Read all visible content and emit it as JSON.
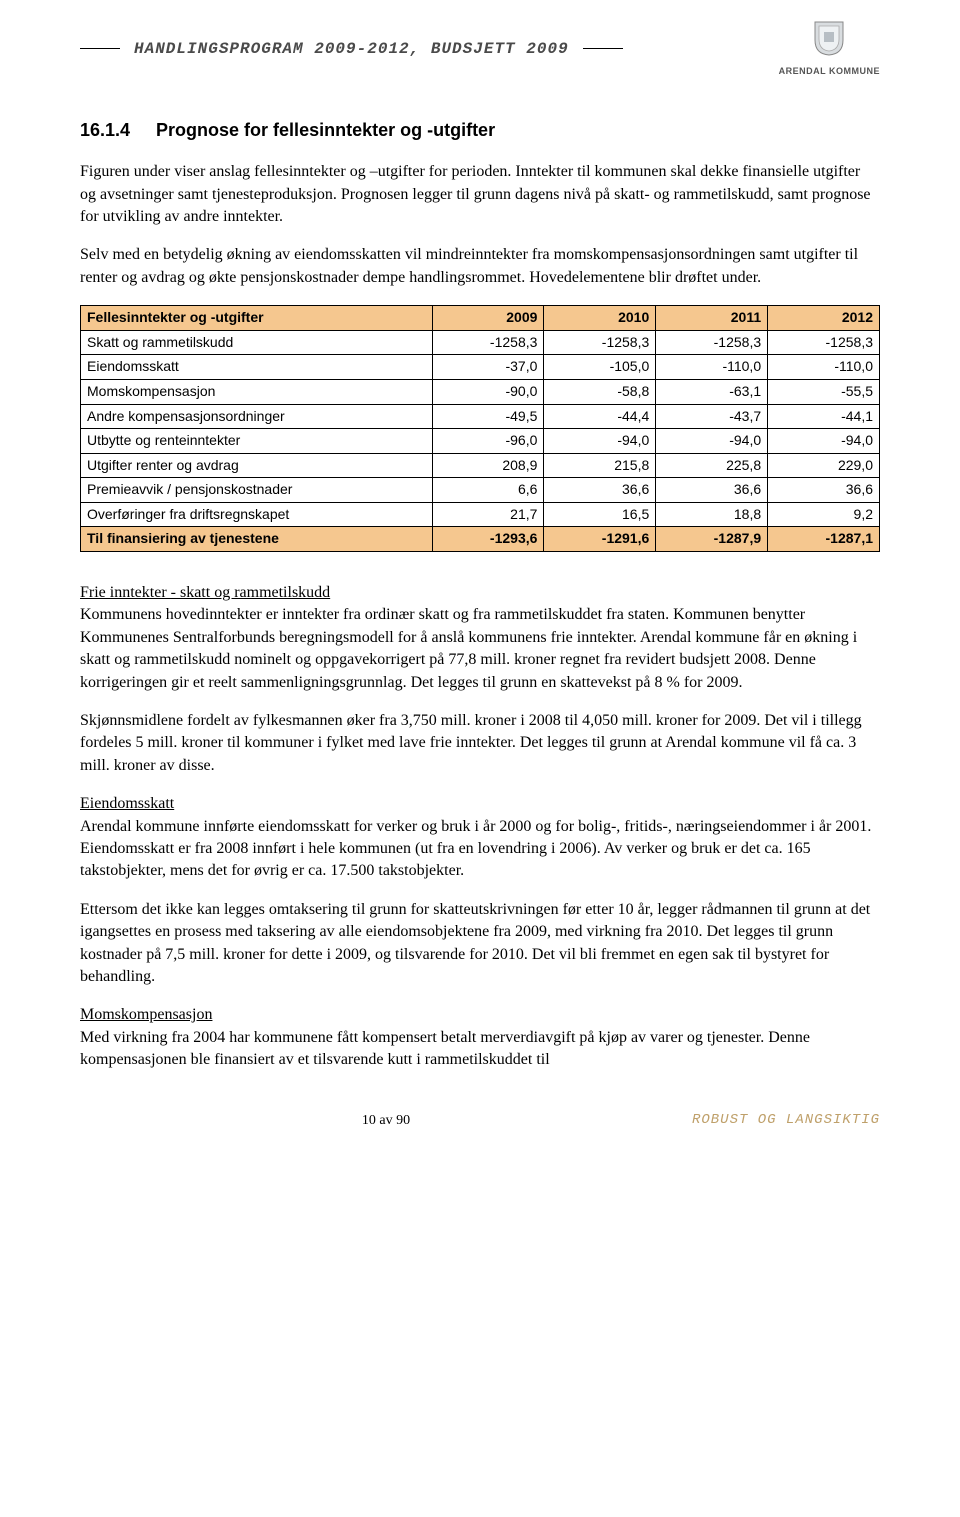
{
  "header": {
    "title": "HANDLINGSPROGRAM 2009-2012, BUDSJETT 2009",
    "org": "ARENDAL KOMMUNE"
  },
  "section": {
    "number": "16.1.4",
    "heading": "Prognose for fellesinntekter og -utgifter"
  },
  "paragraphs": {
    "intro": "Figuren under viser anslag fellesinntekter og –utgifter for perioden. Inntekter til kommunen skal dekke finansielle utgifter og avsetninger samt tjenesteproduksjon. Prognosen legger til grunn dagens nivå på  skatt- og rammetilskudd, samt prognose for utvikling av andre inntekter.",
    "intro2": "Selv med en betydelig økning av eiendomsskatten vil mindreinntekter fra momskompensasjonsordningen samt utgifter til renter og avdrag og økte pensjonskostnader dempe handlingsrommet. Hovedelementene blir drøftet under.",
    "frie_head": "Frie inntekter - skatt og rammetilskudd",
    "frie_body": "Kommunens hovedinntekter er inntekter fra ordinær skatt og fra rammetilskuddet fra staten. Kommunen benytter Kommunenes Sentralforbunds beregningsmodell for å anslå kommunens frie inntekter.  Arendal kommune får en økning i skatt og rammetilskudd nominelt og oppgavekorrigert  på 77,8 mill. kroner regnet fra revidert budsjett 2008. Denne korrigeringen gir et reelt sammenligningsgrunnlag. Det legges til grunn en skattevekst på 8 % for 2009.",
    "skjonn": "Skjønnsmidlene fordelt av fylkesmannen øker fra 3,750 mill. kroner i 2008 til 4,050 mill. kroner for 2009. Det vil i tillegg fordeles 5 mill. kroner til kommuner i fylket med lave frie inntekter. Det legges til grunn at Arendal kommune vil få ca. 3 mill. kroner av disse.",
    "eiendom_head": "Eiendomsskatt",
    "eiendom_body": "Arendal kommune innførte eiendomsskatt for verker og bruk i år 2000 og for bolig-, fritids-, næringseiendommer i år 2001. Eiendomsskatt er fra 2008 innført i hele kommunen (ut fra en lovendring i 2006). Av verker og bruk er det ca. 165 takstobjekter, mens det for øvrig er ca. 17.500 takstobjekter.",
    "ettersom": "Ettersom det ikke kan legges omtaksering til grunn for skatteutskrivningen før etter 10 år, legger rådmannen til grunn at det igangsettes en prosess med taksering av alle eiendomsobjektene fra 2009, med virkning fra 2010. Det legges til grunn kostnader på 7,5 mill. kroner for dette i 2009, og tilsvarende for 2010. Det vil bli fremmet en egen sak til bystyret for behandling.",
    "moms_head": "Momskompensasjon",
    "moms_body": "Med virkning fra 2004 har kommunene fått kompensert betalt merverdiavgift på kjøp av varer og tjenester. Denne kompensasjonen ble finansiert av et tilsvarende kutt i rammetilskuddet til"
  },
  "table": {
    "header_fill": "#f5c78f",
    "row_fill": "#ffffff",
    "border_color": "#000000",
    "font_size": 14,
    "columns": [
      "Fellesinntekter og -utgifter",
      "2009",
      "2010",
      "2011",
      "2012"
    ],
    "rows": [
      {
        "label": "Skatt og rammetilskudd",
        "vals": [
          "-1258,3",
          "-1258,3",
          "-1258,3",
          "-1258,3"
        ],
        "fill": "#ffffff",
        "bold": false
      },
      {
        "label": "Eiendomsskatt",
        "vals": [
          "-37,0",
          "-105,0",
          "-110,0",
          "-110,0"
        ],
        "fill": "#ffffff",
        "bold": false
      },
      {
        "label": "Momskompensasjon",
        "vals": [
          "-90,0",
          "-58,8",
          "-63,1",
          "-55,5"
        ],
        "fill": "#ffffff",
        "bold": false
      },
      {
        "label": "Andre kompensasjonsordninger",
        "vals": [
          "-49,5",
          "-44,4",
          "-43,7",
          "-44,1"
        ],
        "fill": "#ffffff",
        "bold": false
      },
      {
        "label": "Utbytte og renteinntekter",
        "vals": [
          "-96,0",
          "-94,0",
          "-94,0",
          "-94,0"
        ],
        "fill": "#ffffff",
        "bold": false
      },
      {
        "label": "Utgifter renter og avdrag",
        "vals": [
          "208,9",
          "215,8",
          "225,8",
          "229,0"
        ],
        "fill": "#ffffff",
        "bold": false
      },
      {
        "label": "Premieavvik / pensjonskostnader",
        "vals": [
          "6,6",
          "36,6",
          "36,6",
          "36,6"
        ],
        "fill": "#ffffff",
        "bold": false
      },
      {
        "label": "Overføringer fra driftsregnskapet",
        "vals": [
          "21,7",
          "16,5",
          "18,8",
          "9,2"
        ],
        "fill": "#ffffff",
        "bold": false
      },
      {
        "label": "Til finansiering av tjenestene",
        "vals": [
          "-1293,6",
          "-1291,6",
          "-1287,9",
          "-1287,1"
        ],
        "fill": "#f5c78f",
        "bold": true
      }
    ]
  },
  "footer": {
    "page": "10 av 90",
    "right": "ROBUST OG LANGSIKTIG",
    "right_color": "#bfa06a"
  }
}
